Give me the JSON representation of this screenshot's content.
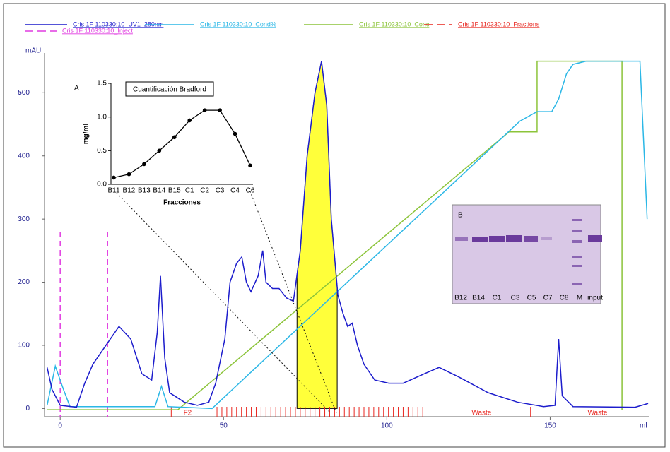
{
  "chart_data": {
    "type": "line",
    "y_unit": "mAU",
    "x_unit": "ml",
    "xlim": [
      -4.8,
      180.2
    ],
    "ylim": [
      -13,
      563
    ],
    "xticks": [
      0,
      50,
      100,
      150
    ],
    "yticks": [
      0,
      100,
      200,
      300,
      400,
      500
    ],
    "series": [
      {
        "name": "Cris 1F 110330:10_UV1_280nm",
        "color": "#1c1ccc",
        "x": [
          -4,
          -2.5,
          0,
          5,
          7.5,
          10,
          14,
          18,
          21.6,
          25,
          28,
          29.7,
          30.7,
          32,
          33.5,
          38,
          42,
          45.5,
          47.6,
          50.4,
          52,
          54,
          55.6,
          57,
          58.4,
          60.6,
          62,
          63,
          65,
          67,
          69.3,
          71.4,
          73.5,
          75.6,
          78,
          80,
          81.6,
          83,
          85,
          86.6,
          88,
          89.4,
          91,
          93,
          96.3,
          100.6,
          105,
          111.5,
          116,
          122,
          131,
          140,
          148,
          151.5,
          152.6,
          153.7,
          157,
          176,
          180
        ],
        "values": [
          65,
          30,
          5,
          2,
          40,
          70,
          100,
          130,
          110,
          55,
          45,
          120,
          210,
          80,
          25,
          10,
          5,
          10,
          40,
          110,
          200,
          230,
          240,
          200,
          185,
          210,
          250,
          200,
          190,
          190,
          175,
          170,
          250,
          400,
          500,
          550,
          480,
          300,
          180,
          150,
          130,
          135,
          100,
          70,
          45,
          40,
          40,
          55,
          65,
          50,
          25,
          10,
          3,
          5,
          110,
          20,
          3,
          2,
          8
        ]
      },
      {
        "name": "Cris 1F 110330:10_Cond%",
        "color": "#2bb7e6",
        "x": [
          -4,
          -1.5,
          1,
          3,
          29,
          31,
          33,
          46.5,
          140.7,
          146,
          150.5,
          152.6,
          155,
          157,
          161,
          177.5,
          179.7
        ],
        "values": [
          5,
          67,
          30,
          3,
          3,
          35,
          3,
          0,
          455,
          470,
          470,
          490,
          530,
          545,
          550,
          550,
          300
        ]
      },
      {
        "name": "Cris 1F 110330:10_Conc",
        "color": "#8cc43a",
        "x": [
          -4,
          36,
          137.4,
          146,
          146,
          172,
          172
        ],
        "values": [
          -2,
          -2,
          438,
          438,
          550,
          550,
          -2
        ]
      }
    ],
    "fractions": {
      "name": "Cris 1F 110330:10_Fractions",
      "color": "#e8261f",
      "marks": [
        34,
        48,
        49.5,
        51,
        52.5,
        54,
        55.5,
        57,
        58.5,
        60,
        61.5,
        63,
        64.5,
        66,
        67.5,
        69,
        70.5,
        72,
        73.5,
        75,
        76.5,
        78,
        79.5,
        81,
        82.5,
        84,
        85.5,
        87,
        88.5,
        90,
        91.5,
        93,
        94.5,
        96,
        97.5,
        99,
        100.5,
        102,
        103.5,
        105,
        106.5,
        108,
        109.5,
        111,
        144
      ],
      "labels": [
        {
          "x": 39,
          "text": "F2"
        },
        {
          "x": 129,
          "text": "Waste"
        },
        {
          "x": 164.5,
          "text": "Waste"
        }
      ]
    },
    "inject": {
      "name": "Cris 1F 110330:10_Inject",
      "color": "#e03ce0",
      "marks": [
        0,
        14.5
      ],
      "top": 280
    },
    "highlight": {
      "xlim": [
        72.5,
        84.8
      ],
      "color": "#ffff3a"
    },
    "inset": {
      "type": "line",
      "label": "A",
      "title": "Cuantificación Bradford",
      "y_label": "mg/ml",
      "x_label": "Fracciones",
      "categories": [
        "B11",
        "B12",
        "B13",
        "B14",
        "B15",
        "C1",
        "C2",
        "C3",
        "C4",
        "C6"
      ],
      "values": [
        0.1,
        0.15,
        0.3,
        0.5,
        0.7,
        0.95,
        1.1,
        1.1,
        0.75,
        0.28
      ],
      "ylim": [
        0,
        1.5
      ],
      "yticks": [
        {
          "value": 0,
          "label": "0.0"
        },
        {
          "value": 0.5,
          "label": "0.5"
        },
        {
          "value": 1,
          "label": "1.0"
        },
        {
          "value": 1.5,
          "label": "1.5"
        }
      ]
    },
    "gel": {
      "label": "B",
      "lanes": [
        "B12",
        "B14",
        "C1",
        "C3",
        "C5",
        "C7",
        "C8",
        "M",
        "input"
      ]
    }
  }
}
